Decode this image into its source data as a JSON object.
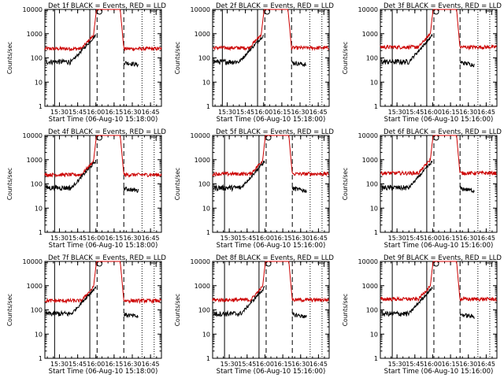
{
  "chart_data": [
    {
      "type": "line",
      "title": "Det 1f BLACK = Events, RED = LLD",
      "xlabel": "Start Time (06-Aug-10 15:18:00)",
      "ylabel": "Counts/sec",
      "ylim": [
        1,
        10000
      ],
      "yscale": "log",
      "xlim": [
        "15:18",
        "16:54"
      ],
      "x_ticks": [
        "15:30",
        "15:45",
        "16:00",
        "16:15",
        "16:30",
        "16:45"
      ],
      "y_ticks": [
        "1",
        "10",
        "100",
        "1000",
        "10000"
      ],
      "series": []
    },
    {
      "type": "line",
      "title": "Det 2f BLACK = Events, RED = LLD",
      "xlabel": "Start Time (06-Aug-10 15:18:00)",
      "ylabel": "Counts/sec",
      "ylim": [
        1,
        10000
      ],
      "yscale": "log",
      "xlim": [
        "15:18",
        "16:54"
      ],
      "x_ticks": [
        "15:30",
        "15:45",
        "16:00",
        "16:15",
        "16:30",
        "16:45"
      ],
      "y_ticks": [
        "1",
        "10",
        "100",
        "1000",
        "10000"
      ],
      "series": []
    },
    {
      "type": "line",
      "title": "Det 3f BLACK = Events, RED = LLD",
      "xlabel": "Start Time (06-Aug-10 15:16:00)",
      "ylabel": "Counts/sec",
      "ylim": [
        1,
        10000
      ],
      "yscale": "log",
      "xlim": [
        "15:16",
        "16:54"
      ],
      "x_ticks": [
        "15:30",
        "15:45",
        "16:00",
        "16:15",
        "16:30",
        "16:45"
      ],
      "y_ticks": [
        "1",
        "10",
        "100",
        "1000",
        "10000"
      ],
      "series": []
    },
    {
      "type": "line",
      "title": "Det 4f BLACK = Events, RED = LLD",
      "xlabel": "Start Time (06-Aug-10 15:18:00)",
      "ylabel": "Counts/sec",
      "ylim": [
        1,
        10000
      ],
      "yscale": "log",
      "xlim": [
        "15:18",
        "16:54"
      ],
      "x_ticks": [
        "15:30",
        "15:45",
        "16:00",
        "16:15",
        "16:30",
        "16:45"
      ],
      "y_ticks": [
        "1",
        "10",
        "100",
        "1000",
        "10000"
      ],
      "series": []
    },
    {
      "type": "line",
      "title": "Det 5f BLACK = Events, RED = LLD",
      "xlabel": "Start Time (06-Aug-10 15:16:00)",
      "ylabel": "Counts/sec",
      "ylim": [
        1,
        10000
      ],
      "yscale": "log",
      "xlim": [
        "15:16",
        "16:54"
      ],
      "x_ticks": [
        "15:30",
        "15:45",
        "16:00",
        "16:15",
        "16:30",
        "16:45"
      ],
      "y_ticks": [
        "1",
        "10",
        "100",
        "1000",
        "10000"
      ],
      "series": []
    },
    {
      "type": "line",
      "title": "Det 6f BLACK = Events, RED = LLD",
      "xlabel": "Start Time (06-Aug-10 15:16:00)",
      "ylabel": "Counts/sec",
      "ylim": [
        1,
        10000
      ],
      "yscale": "log",
      "xlim": [
        "15:16",
        "16:54"
      ],
      "x_ticks": [
        "15:30",
        "15:45",
        "16:00",
        "16:15",
        "16:30",
        "16:45"
      ],
      "y_ticks": [
        "1",
        "10",
        "100",
        "1000",
        "10000"
      ],
      "series": []
    },
    {
      "type": "line",
      "title": "Det 7f BLACK = Events, RED = LLD",
      "xlabel": "Start Time (06-Aug-10 15:18:00)",
      "ylabel": "Counts/sec",
      "ylim": [
        1,
        10000
      ],
      "yscale": "log",
      "xlim": [
        "15:18",
        "16:54"
      ],
      "x_ticks": [
        "15:30",
        "15:45",
        "16:00",
        "16:15",
        "16:30",
        "16:45"
      ],
      "y_ticks": [
        "1",
        "10",
        "100",
        "1000",
        "10000"
      ],
      "series": []
    },
    {
      "type": "line",
      "title": "Det 8f BLACK = Events, RED = LLD",
      "xlabel": "Start Time (06-Aug-10 15:16:00)",
      "ylabel": "Counts/sec",
      "ylim": [
        1,
        10000
      ],
      "yscale": "log",
      "xlim": [
        "15:16",
        "16:54"
      ],
      "x_ticks": [
        "15:30",
        "15:45",
        "16:00",
        "16:15",
        "16:30",
        "16:45"
      ],
      "y_ticks": [
        "1",
        "10",
        "100",
        "1000",
        "10000"
      ],
      "series": []
    },
    {
      "type": "line",
      "title": "Det 9f BLACK = Events, RED = LLD",
      "xlabel": "Start Time (06-Aug-10 15:16:00)",
      "ylabel": "Counts/sec",
      "ylim": [
        1,
        10000
      ],
      "yscale": "log",
      "xlim": [
        "15:16",
        "16:54"
      ],
      "x_ticks": [
        "15:30",
        "15:45",
        "16:00",
        "16:15",
        "16:30",
        "16:45"
      ],
      "y_ticks": [
        "1",
        "10",
        "100",
        "1000",
        "10000"
      ],
      "series": []
    }
  ],
  "colors": {
    "events": "#000000",
    "lld": "#cc0000",
    "axes": "#000000",
    "background": "#ffffff"
  }
}
